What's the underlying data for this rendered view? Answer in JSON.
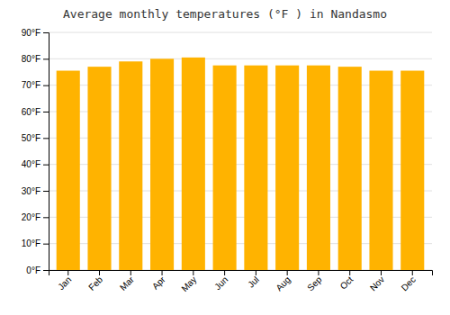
{
  "chart_data": {
    "type": "bar",
    "title": "Average monthly temperatures (°F ) in Nandasmo",
    "categories": [
      "Jan",
      "Feb",
      "Mar",
      "Apr",
      "May",
      "Jun",
      "Jul",
      "Aug",
      "Sep",
      "Oct",
      "Nov",
      "Dec"
    ],
    "values": [
      75.5,
      77.0,
      79.0,
      80.0,
      80.5,
      77.5,
      77.5,
      77.5,
      77.5,
      77.0,
      75.5,
      75.5
    ],
    "color": "#FFB300",
    "ylim": [
      0,
      90
    ],
    "yticks": [
      {
        "value": 0,
        "label": "0°F"
      },
      {
        "value": 10,
        "label": "10°F"
      },
      {
        "value": 20,
        "label": "20°F"
      },
      {
        "value": 30,
        "label": "30°F"
      },
      {
        "value": 40,
        "label": "40°F"
      },
      {
        "value": 50,
        "label": "50°F"
      },
      {
        "value": 60,
        "label": "60°F"
      },
      {
        "value": 70,
        "label": "70°F"
      },
      {
        "value": 80,
        "label": "80°F"
      },
      {
        "value": 90,
        "label": "90°F"
      }
    ],
    "grid": true
  }
}
